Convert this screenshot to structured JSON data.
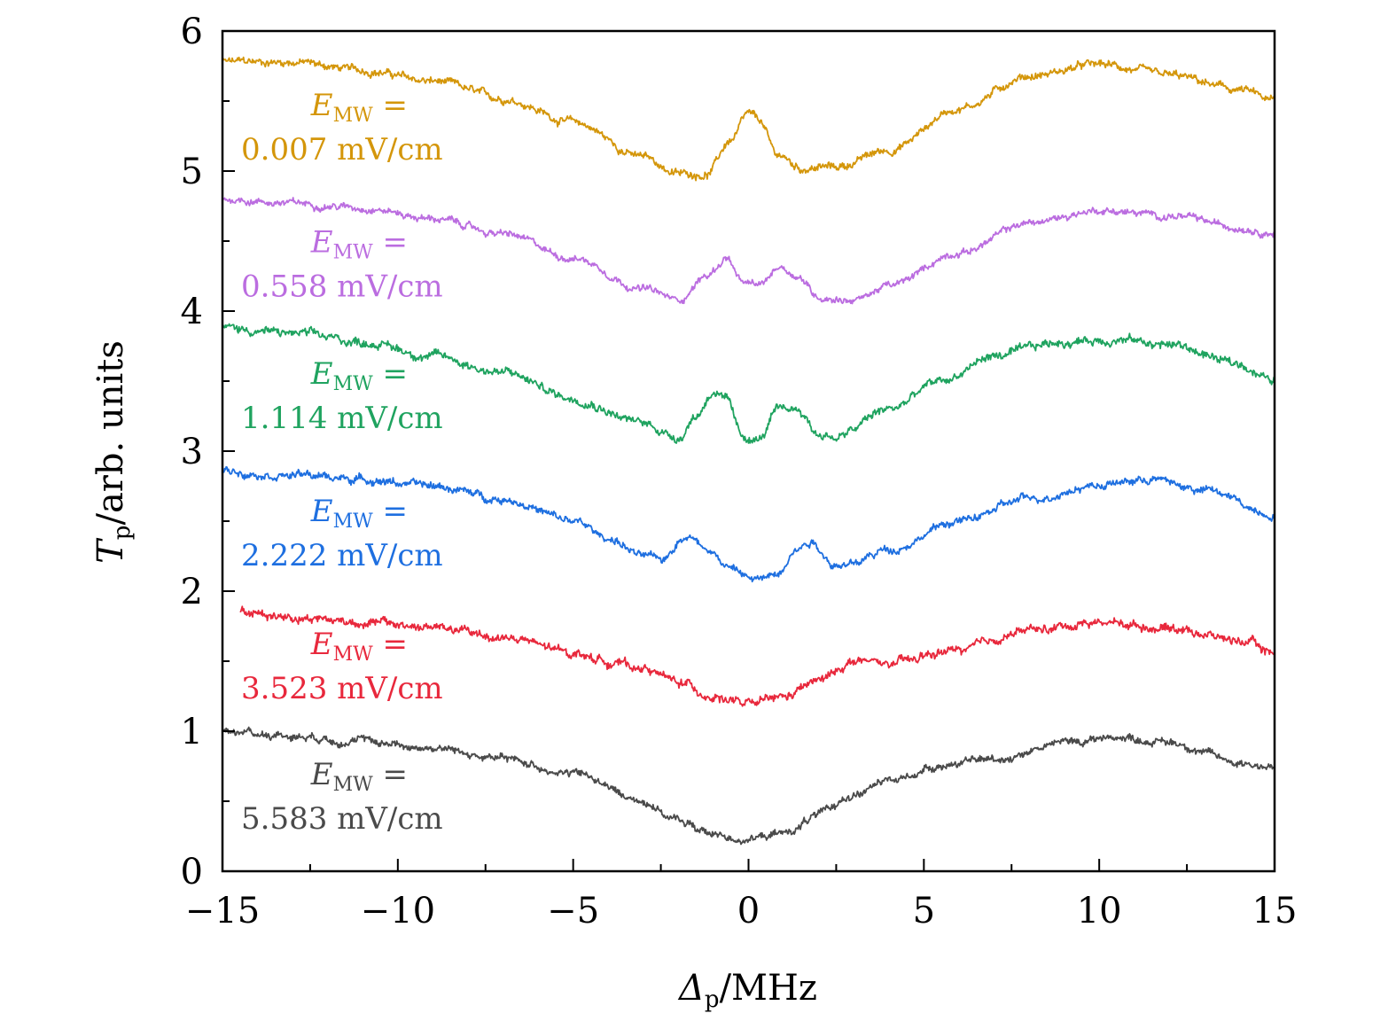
{
  "chart_data": {
    "type": "line",
    "title": "",
    "xlabel": {
      "symbol": "Δ",
      "sub": "p",
      "unit": "/MHz"
    },
    "ylabel": {
      "symbol": "T",
      "sub": "p",
      "unit": "/arb. units"
    },
    "xlim": [
      -15,
      15
    ],
    "ylim": [
      0,
      6
    ],
    "xticks": [
      -15,
      -10,
      -5,
      0,
      5,
      10,
      15
    ],
    "xtick_labels": [
      "−15",
      "−10",
      "−5",
      "0",
      "5",
      "10",
      "15"
    ],
    "yticks": [
      0,
      1,
      2,
      3,
      4,
      5,
      6
    ],
    "ytick_labels": [
      "0",
      "1",
      "2",
      "3",
      "4",
      "5",
      "6"
    ],
    "grid": false,
    "series": [
      {
        "name": "0.007 mV/cm",
        "color": "#d4960a",
        "noise": 0.025,
        "ann_y": 5.4,
        "label_line1": "E",
        "label_sub": "MW",
        "label_eq": " =",
        "label_line2": "0.007 mV/cm",
        "points": [
          [
            -15,
            5.78
          ],
          [
            -13,
            5.78
          ],
          [
            -11,
            5.72
          ],
          [
            -9,
            5.64
          ],
          [
            -7,
            5.52
          ],
          [
            -5,
            5.35
          ],
          [
            -3,
            5.1
          ],
          [
            -2,
            4.98
          ],
          [
            -1.2,
            4.98
          ],
          [
            -0.5,
            5.22
          ],
          [
            0,
            5.4
          ],
          [
            0.3,
            5.36
          ],
          [
            0.8,
            5.12
          ],
          [
            1.5,
            5.02
          ],
          [
            2.5,
            5.03
          ],
          [
            4,
            5.15
          ],
          [
            6,
            5.45
          ],
          [
            8,
            5.68
          ],
          [
            10,
            5.76
          ],
          [
            12,
            5.68
          ],
          [
            14,
            5.58
          ],
          [
            15,
            5.5
          ]
        ]
      },
      {
        "name": "0.558 mV/cm",
        "color": "#bb6de0",
        "noise": 0.022,
        "ann_y": 4.42,
        "label_line1": "E",
        "label_sub": "MW",
        "label_eq": " =",
        "label_line2": "0.558 mV/cm",
        "points": [
          [
            -15,
            4.8
          ],
          [
            -13,
            4.77
          ],
          [
            -11,
            4.74
          ],
          [
            -9,
            4.66
          ],
          [
            -7,
            4.55
          ],
          [
            -5,
            4.38
          ],
          [
            -3,
            4.16
          ],
          [
            -2,
            4.08
          ],
          [
            -1.2,
            4.25
          ],
          [
            -0.6,
            4.38
          ],
          [
            -0.2,
            4.2
          ],
          [
            0.3,
            4.18
          ],
          [
            0.9,
            4.32
          ],
          [
            1.4,
            4.25
          ],
          [
            2,
            4.1
          ],
          [
            3,
            4.08
          ],
          [
            4,
            4.18
          ],
          [
            6,
            4.42
          ],
          [
            8,
            4.63
          ],
          [
            10,
            4.72
          ],
          [
            12,
            4.68
          ],
          [
            14,
            4.6
          ],
          [
            15,
            4.56
          ]
        ]
      },
      {
        "name": "1.114 mV/cm",
        "color": "#1fa35f",
        "noise": 0.028,
        "ann_y": 3.48,
        "label_line1": "E",
        "label_sub": "MW",
        "label_eq": " =",
        "label_line2": "1.114 mV/cm",
        "points": [
          [
            -15,
            3.88
          ],
          [
            -13,
            3.84
          ],
          [
            -11,
            3.78
          ],
          [
            -9,
            3.68
          ],
          [
            -7,
            3.56
          ],
          [
            -5,
            3.38
          ],
          [
            -3,
            3.2
          ],
          [
            -2,
            3.1
          ],
          [
            -1.5,
            3.25
          ],
          [
            -1,
            3.43
          ],
          [
            -0.6,
            3.35
          ],
          [
            -0.2,
            3.1
          ],
          [
            0.3,
            3.08
          ],
          [
            0.8,
            3.28
          ],
          [
            1.4,
            3.3
          ],
          [
            2,
            3.12
          ],
          [
            2.5,
            3.1
          ],
          [
            4,
            3.3
          ],
          [
            5.5,
            3.5
          ],
          [
            7,
            3.68
          ],
          [
            9,
            3.78
          ],
          [
            10.5,
            3.8
          ],
          [
            12,
            3.76
          ],
          [
            14,
            3.62
          ],
          [
            15,
            3.5
          ]
        ]
      },
      {
        "name": "2.222 mV/cm",
        "color": "#1e6fe0",
        "noise": 0.025,
        "ann_y": 2.5,
        "label_line1": "E",
        "label_sub": "MW",
        "label_eq": " =",
        "label_line2": "2.222 mV/cm",
        "points": [
          [
            -15,
            2.86
          ],
          [
            -13,
            2.83
          ],
          [
            -11,
            2.8
          ],
          [
            -9,
            2.75
          ],
          [
            -7,
            2.66
          ],
          [
            -5,
            2.5
          ],
          [
            -4,
            2.38
          ],
          [
            -3,
            2.25
          ],
          [
            -2.5,
            2.22
          ],
          [
            -1.8,
            2.4
          ],
          [
            -1.2,
            2.32
          ],
          [
            -0.5,
            2.16
          ],
          [
            0.2,
            2.08
          ],
          [
            0.8,
            2.12
          ],
          [
            1.3,
            2.3
          ],
          [
            1.8,
            2.36
          ],
          [
            2.4,
            2.2
          ],
          [
            2.8,
            2.18
          ],
          [
            4,
            2.3
          ],
          [
            6,
            2.5
          ],
          [
            8,
            2.66
          ],
          [
            10,
            2.76
          ],
          [
            11.5,
            2.8
          ],
          [
            13,
            2.72
          ],
          [
            15,
            2.55
          ]
        ]
      },
      {
        "name": "3.523 mV/cm",
        "color": "#e8283c",
        "noise": 0.028,
        "ann_y": 1.55,
        "label_line1": "E",
        "label_sub": "MW",
        "label_eq": " =",
        "label_line2": "3.523 mV/cm",
        "points": [
          [
            -14.5,
            1.85
          ],
          [
            -13,
            1.82
          ],
          [
            -11,
            1.78
          ],
          [
            -9,
            1.74
          ],
          [
            -7,
            1.67
          ],
          [
            -5,
            1.56
          ],
          [
            -4,
            1.5
          ],
          [
            -3,
            1.45
          ],
          [
            -2,
            1.35
          ],
          [
            -1,
            1.25
          ],
          [
            0,
            1.19
          ],
          [
            1,
            1.24
          ],
          [
            2,
            1.36
          ],
          [
            3,
            1.5
          ],
          [
            4,
            1.48
          ],
          [
            6,
            1.58
          ],
          [
            8,
            1.72
          ],
          [
            10,
            1.78
          ],
          [
            12,
            1.74
          ],
          [
            14,
            1.65
          ],
          [
            15,
            1.56
          ]
        ]
      },
      {
        "name": "5.583 mV/cm",
        "color": "#4a4a4a",
        "noise": 0.025,
        "ann_y": 0.62,
        "label_line1": "E",
        "label_sub": "MW",
        "label_eq": " =",
        "label_line2": "5.583 mV/cm",
        "points": [
          [
            -15,
            1.0
          ],
          [
            -13,
            0.97
          ],
          [
            -11,
            0.93
          ],
          [
            -9,
            0.88
          ],
          [
            -7,
            0.8
          ],
          [
            -5,
            0.7
          ],
          [
            -3,
            0.5
          ],
          [
            -2,
            0.36
          ],
          [
            -1,
            0.26
          ],
          [
            0,
            0.23
          ],
          [
            1,
            0.27
          ],
          [
            2,
            0.4
          ],
          [
            3,
            0.55
          ],
          [
            4,
            0.64
          ],
          [
            5.5,
            0.76
          ],
          [
            7,
            0.8
          ],
          [
            9,
            0.92
          ],
          [
            10.5,
            0.96
          ],
          [
            12,
            0.92
          ],
          [
            14,
            0.78
          ],
          [
            15,
            0.74
          ]
        ]
      }
    ]
  }
}
